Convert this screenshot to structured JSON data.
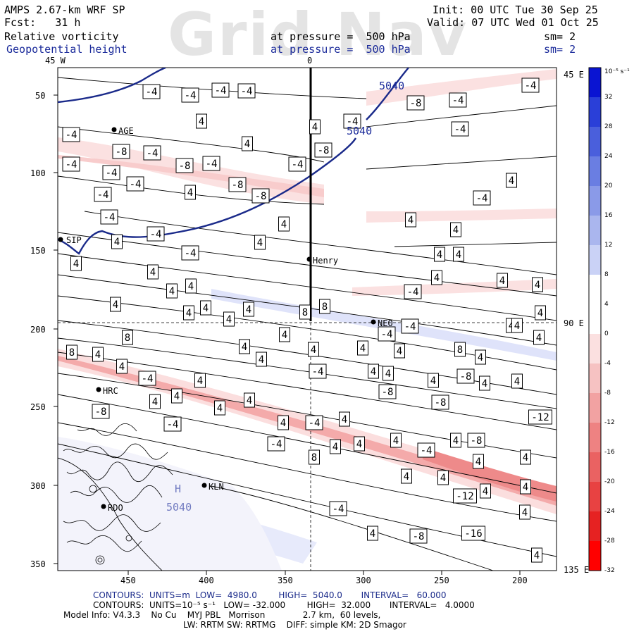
{
  "header": {
    "line1_left": "AMPS 2.67-km WRF SP",
    "line2_left": "Fcst:   31 h",
    "field1": "Relative vorticity",
    "field2": "Geopotential height",
    "level1": "at pressure =  500 hPa",
    "level2": "at pressure =  500 hPa",
    "init": "Init: 00 UTC Tue 30 Sep 25",
    "valid": "Valid: 07 UTC Wed 01 Oct 25",
    "sm1": "sm= 2",
    "sm2": "sm= 2",
    "watermark": "Grid Nav"
  },
  "map": {
    "lon_top_left": "45 W",
    "lon_top_mid": "0",
    "lon_right_top": "45 E",
    "lon_right_mid": "90 E",
    "lon_right_bottom": "135 E",
    "y_ticks": [
      "50",
      "100",
      "150",
      "200",
      "250",
      "300",
      "350"
    ],
    "x_ticks": [
      "450",
      "400",
      "350",
      "300",
      "250",
      "200"
    ],
    "stations": [
      {
        "name": "AGE"
      },
      {
        "name": "SIP"
      },
      {
        "name": "Henry"
      },
      {
        "name": "NEO"
      },
      {
        "name": "HRC"
      },
      {
        "name": "KLN"
      },
      {
        "name": "RDO"
      }
    ],
    "height_labels": [
      "5040",
      "5040",
      "5040"
    ],
    "high_marker": "H",
    "high_value": "5040"
  },
  "colorbar": {
    "unit": "10⁻⁵ s⁻¹",
    "labels": [
      "32",
      "28",
      "24",
      "20",
      "16",
      "12",
      "8",
      "4",
      "0",
      "-4",
      "-8",
      "-12",
      "-16",
      "-20",
      "-24",
      "-28",
      "-32"
    ],
    "colors": [
      "#0a14d2",
      "#2a3fd8",
      "#4a5fdc",
      "#6a7ee2",
      "#8a9ae8",
      "#aab6ee",
      "#cad2f6",
      "#ffffff",
      "#ffffff",
      "#fbe0e0",
      "#f6c2c2",
      "#f2a2a2",
      "#ee8282",
      "#ea6262",
      "#e84242",
      "#e62222",
      "#ff0000"
    ]
  },
  "footer": {
    "line1": "CONTOURS:  UNITS=m  LOW=  4980.0        HIGH=  5040.0       INTERVAL=   60.000",
    "line2": "CONTOURS:  UNITS=10⁻⁵ s⁻¹   LOW= -32.000        HIGH=  32.000       INTERVAL=   4.0000",
    "line3": "Model Info: V4.3.3    No Cu    MYJ PBL   Morrison              2.7 km,  60 levels,",
    "line4": "LW: RRTM SW: RRTMG    DIFF: simple KM: 2D Smagor"
  },
  "contour_labels": [
    "-4",
    "-4",
    "-4",
    "-4",
    "-4",
    "-8",
    "-4",
    "4",
    "-4",
    "4",
    "-4",
    "-8",
    "-4",
    "4",
    "-8",
    "-4",
    "-4",
    "-4",
    "-8",
    "-4",
    "-4",
    "-8",
    "-8",
    "-4",
    "4",
    "-4",
    "4",
    "-4",
    "-4",
    "4",
    "4",
    "-4",
    "4",
    "4",
    "-4",
    "4",
    "4",
    "4",
    "4",
    "8",
    "4",
    "4",
    "4",
    "4",
    "4",
    "4",
    "4",
    "4",
    "4",
    "4",
    "4",
    "-4",
    "4",
    "8",
    "4",
    "4",
    "8",
    "-4",
    "-4",
    "4",
    "4",
    "4",
    "4",
    "4",
    "4",
    "4",
    "4",
    "8",
    "4",
    "8",
    "4",
    "-4",
    "4",
    "4",
    "-4",
    "-8",
    "4",
    "4",
    "4",
    "-8",
    "4",
    "4",
    "4",
    "4",
    "4",
    "-4",
    "-4",
    "4",
    "4",
    "-8",
    "-8",
    "-4",
    "4",
    "4",
    "4",
    "-4",
    "4",
    "-8",
    "-12",
    "8",
    "4",
    "4",
    "4",
    "4",
    "-12",
    "4",
    "4",
    "-4",
    "4",
    "4",
    "-8",
    "-16",
    "4",
    "-8",
    "4",
    "4",
    "4",
    "4"
  ]
}
